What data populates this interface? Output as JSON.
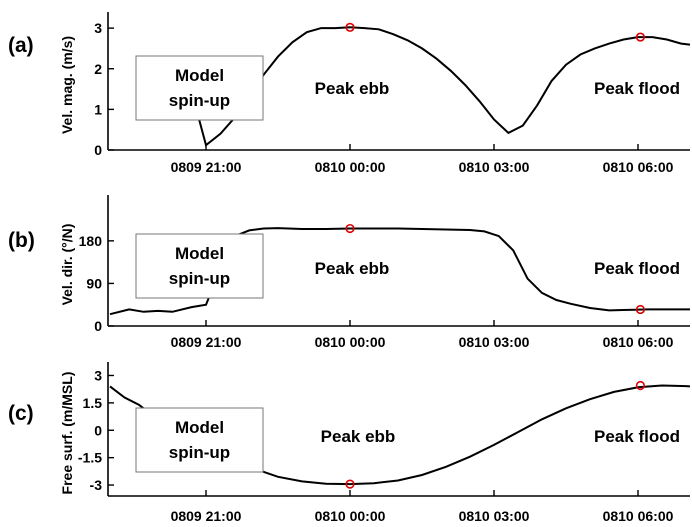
{
  "chart_data": [
    {
      "type": "line",
      "panel_label": "(a)",
      "ylabel": "Vel. mag. (m/s)",
      "xticks": [
        "0809 21:00",
        "0810 00:00",
        "0810 03:00",
        "0810 06:00"
      ],
      "yticks": [
        "0",
        "1",
        "2",
        "3"
      ],
      "xlim": [
        -1.0,
        7.0
      ],
      "ylim": [
        0,
        3.2
      ],
      "yticks_values": [
        0,
        1,
        2,
        3
      ],
      "box": "Model\nspin-up",
      "box_lines": [
        "Model",
        "spin-up"
      ],
      "annotations": [
        "Peak ebb",
        "Peak flood"
      ],
      "x_hours_since_0809_2100": [
        -1.0,
        -0.8,
        -0.6,
        -0.4,
        -0.2,
        0.0,
        0.3,
        0.6,
        0.9,
        1.2,
        1.5,
        1.8,
        2.1,
        2.4,
        2.7,
        3.0,
        3.3,
        3.6,
        3.9,
        4.2,
        4.5,
        4.8,
        5.1,
        5.4,
        5.7,
        6.0,
        6.3,
        6.6,
        6.9,
        7.0
      ],
      "x": [
        "0809 20:00",
        "0809 20:12",
        "0809 20:24",
        "0809 20:36",
        "0809 20:48",
        "0809 21:00",
        "0809 21:18",
        "0809 21:36",
        "0809 21:54",
        "0809 22:12",
        "0809 22:30",
        "0809 22:48",
        "0809 23:06",
        "0809 23:24",
        "0809 23:42",
        "0810 00:00",
        "0810 00:18",
        "0810 00:36",
        "0810 00:54",
        "0810 01:12",
        "0810 01:30",
        "0810 01:48",
        "0810 02:06",
        "0810 02:24",
        "0810 02:42",
        "0810 03:00",
        "0810 03:18",
        "0810 03:36",
        "0810 03:54",
        "0810 04:00"
      ],
      "series": [
        {
          "values": [
            1.75,
            2.1,
            2.0,
            1.6,
            1.0,
            0.12,
            0.4,
            0.8,
            1.3,
            1.85,
            2.3,
            2.65,
            2.9,
            3.0,
            3.0,
            3.02,
            3.0,
            2.97,
            2.85,
            2.7,
            2.5,
            2.25,
            1.95,
            1.6,
            1.2,
            0.75,
            0.42,
            0.6,
            1.1,
            1.3
          ],
          "color": "#000000"
        }
      ],
      "markers": [
        {
          "x": "0810 00:00",
          "y": 3.02
        },
        {
          "x": "0810 06:20",
          "y": 2.78
        }
      ],
      "series_note": "",
      "full_x": [
        -1.0,
        -0.8,
        -0.6,
        -0.4,
        -0.2,
        0.0,
        0.3,
        0.6,
        0.9,
        1.2,
        1.5,
        1.8,
        2.1,
        2.4,
        2.7,
        3.0,
        3.3,
        3.6,
        3.9,
        4.2,
        4.5,
        4.8,
        5.1,
        5.4,
        5.7,
        6.0,
        6.3,
        6.6,
        6.9,
        7.2,
        7.5,
        7.8,
        8.1,
        8.4,
        8.7,
        9.0,
        9.3,
        9.6,
        9.9,
        10.2
      ],
      "full_y": [
        1.75,
        2.1,
        2.0,
        1.6,
        1.0,
        0.12,
        0.4,
        0.8,
        1.3,
        1.85,
        2.3,
        2.65,
        2.9,
        3.0,
        3.0,
        3.02,
        3.0,
        2.97,
        2.85,
        2.7,
        2.5,
        2.25,
        1.95,
        1.6,
        1.2,
        0.75,
        0.42,
        0.6,
        1.1,
        1.7,
        2.1,
        2.35,
        2.5,
        2.62,
        2.72,
        2.78,
        2.78,
        2.72,
        2.62,
        2.58
      ]
    }
  ]
}
